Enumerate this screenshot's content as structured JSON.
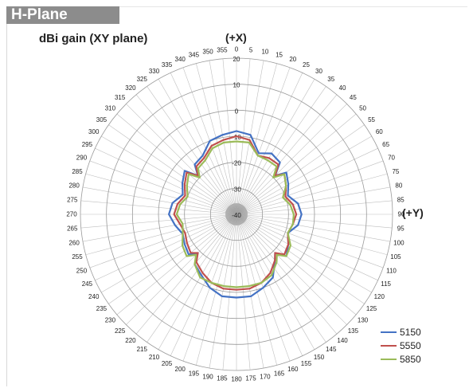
{
  "header": {
    "banner": "H-Plane"
  },
  "chart_data": {
    "type": "radar",
    "title": "dBi gain (XY plane)",
    "top_axis_label": "(+X)",
    "right_axis_label": "(+Y)",
    "angle_labels": [
      "0",
      "5",
      "10",
      "15",
      "20",
      "25",
      "30",
      "35",
      "40",
      "45",
      "50",
      "55",
      "60",
      "65",
      "70",
      "75",
      "80",
      "85",
      "90",
      "95",
      "100",
      "105",
      "110",
      "115",
      "120",
      "125",
      "130",
      "135",
      "140",
      "145",
      "150",
      "155",
      "160",
      "165",
      "170",
      "175",
      "180",
      "185",
      "190",
      "195",
      "200",
      "205",
      "210",
      "215",
      "220",
      "225",
      "230",
      "235",
      "240",
      "245",
      "250",
      "255",
      "260",
      "265",
      "270",
      "275",
      "280",
      "285",
      "290",
      "295",
      "300",
      "305",
      "310",
      "315",
      "320",
      "325",
      "330",
      "335",
      "340",
      "345",
      "350",
      "355"
    ],
    "radial_ticks": [
      "20",
      "10",
      "0",
      "-10",
      "-20",
      "-30",
      "-40"
    ],
    "rlim": [
      -40,
      20
    ],
    "grid": true,
    "legend_position": "bottom-right",
    "series": [
      {
        "name": "5150",
        "color": "#4472c4",
        "angles": [
          0,
          10,
          20,
          30,
          40,
          45,
          50,
          60,
          70,
          80,
          90,
          100,
          110,
          120,
          130,
          135,
          140,
          150,
          160,
          170,
          180,
          190,
          200,
          210,
          220,
          225,
          230,
          240,
          250,
          260,
          270,
          280,
          290,
          300,
          310,
          315,
          320,
          330,
          340,
          350
        ],
        "values": [
          -8,
          -9,
          -15,
          -13,
          -14,
          -19,
          -15,
          -17,
          -19,
          -16,
          -15,
          -16,
          -19,
          -17,
          -15,
          -19,
          -17,
          -12,
          -10,
          -8,
          -8,
          -8,
          -10,
          -13,
          -15,
          -19,
          -16,
          -17,
          -18,
          -16,
          -14,
          -15,
          -18,
          -16,
          -14,
          -19,
          -15,
          -14,
          -10,
          -9
        ]
      },
      {
        "name": "5550",
        "color": "#c0504d",
        "angles": [
          0,
          10,
          20,
          30,
          40,
          45,
          50,
          60,
          70,
          80,
          90,
          100,
          110,
          120,
          130,
          135,
          140,
          150,
          160,
          170,
          180,
          190,
          200,
          210,
          220,
          225,
          230,
          240,
          250,
          260,
          270,
          280,
          290,
          300,
          310,
          315,
          320,
          330,
          340,
          350
        ],
        "values": [
          -10,
          -11,
          -16,
          -15,
          -15,
          -19,
          -16,
          -18,
          -20,
          -18,
          -17,
          -18,
          -19,
          -17,
          -16,
          -19,
          -17,
          -14,
          -12,
          -11,
          -11,
          -11,
          -12,
          -14,
          -16,
          -19,
          -17,
          -18,
          -19,
          -18,
          -16,
          -17,
          -19,
          -17,
          -15,
          -19,
          -16,
          -15,
          -12,
          -11
        ]
      },
      {
        "name": "5850",
        "color": "#9bbb59",
        "angles": [
          0,
          10,
          20,
          30,
          40,
          45,
          50,
          60,
          70,
          80,
          90,
          100,
          110,
          120,
          130,
          135,
          140,
          150,
          160,
          170,
          180,
          190,
          200,
          210,
          220,
          225,
          230,
          240,
          250,
          260,
          270,
          280,
          290,
          300,
          310,
          315,
          320,
          330,
          340,
          350
        ],
        "values": [
          -12,
          -12,
          -16,
          -16,
          -16,
          -20,
          -16,
          -18,
          -21,
          -19,
          -18,
          -18,
          -19,
          -16,
          -15,
          -18,
          -16,
          -13,
          -12,
          -12,
          -12,
          -12,
          -12,
          -12,
          -15,
          -18,
          -15,
          -16,
          -18,
          -19,
          -17,
          -18,
          -20,
          -18,
          -16,
          -20,
          -17,
          -16,
          -13,
          -12
        ]
      }
    ]
  }
}
